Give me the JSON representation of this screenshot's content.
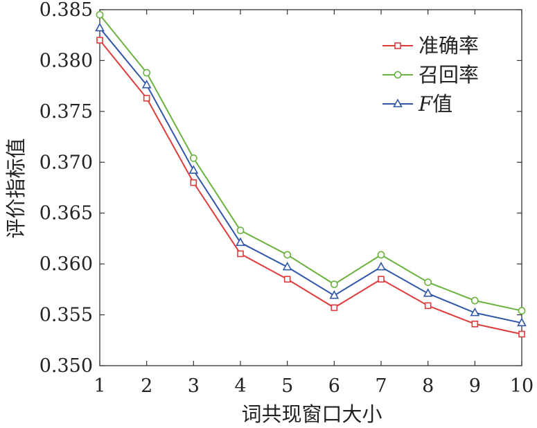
{
  "chart_data": {
    "type": "line",
    "title": "",
    "xlabel": "词共现窗口大小",
    "ylabel": "评价指标值",
    "x": [
      1,
      2,
      3,
      4,
      5,
      6,
      7,
      8,
      9,
      10
    ],
    "xlim": [
      1,
      10
    ],
    "ylim": [
      0.35,
      0.385
    ],
    "xticks": [
      "1",
      "2",
      "3",
      "4",
      "5",
      "6",
      "7",
      "8",
      "9",
      "10"
    ],
    "yticks": [
      "0.350",
      "0.355",
      "0.360",
      "0.365",
      "0.370",
      "0.375",
      "0.380",
      "0.385"
    ],
    "ytick_values": [
      0.35,
      0.355,
      0.36,
      0.365,
      0.37,
      0.375,
      0.38,
      0.385
    ],
    "grid": false,
    "legend_position": "top-right",
    "series": [
      {
        "name": "准确率",
        "color": "#e03a3a",
        "marker": "square",
        "values": [
          0.382,
          0.3763,
          0.368,
          0.361,
          0.3585,
          0.3557,
          0.3585,
          0.3559,
          0.3541,
          0.3531
        ]
      },
      {
        "name": "召回率",
        "color": "#6ab23e",
        "marker": "circle",
        "values": [
          0.3845,
          0.3788,
          0.3704,
          0.3633,
          0.3609,
          0.358,
          0.3609,
          0.3582,
          0.3564,
          0.3554
        ]
      },
      {
        "name": "F值",
        "name_italic_part": "F",
        "name_rest": "值",
        "color": "#2f56a8",
        "marker": "triangle",
        "values": [
          0.3832,
          0.3776,
          0.3692,
          0.3621,
          0.3597,
          0.3569,
          0.3597,
          0.3571,
          0.3552,
          0.3542
        ]
      }
    ]
  }
}
